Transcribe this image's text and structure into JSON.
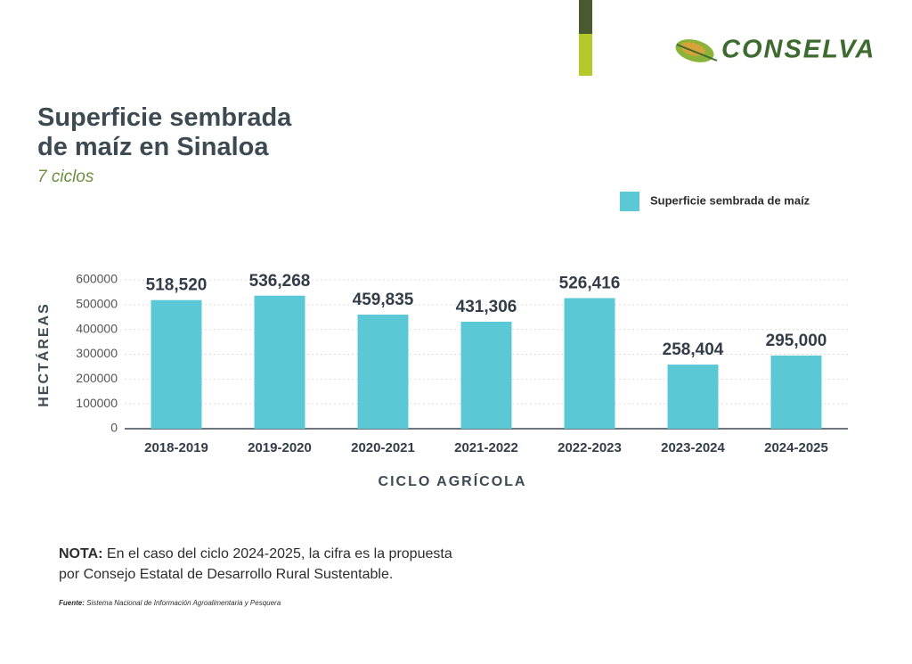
{
  "brand": "CONSELVA",
  "note": {
    "label": "NOTA:",
    "text": "En el caso del ciclo 2024-2025, la cifra es la propuesta por Consejo Estatal de Desarrollo Rural Sustentable."
  },
  "source": {
    "label": "Fuente:",
    "text": "Sistema Nacional de Información Agroalimentaria y Pesquera"
  },
  "chart_data": {
    "type": "bar",
    "title": "Superficie sembrada de maíz en Sinaloa",
    "subtitle": "7 ciclos",
    "x_label": "CICLO AGRÍCOLA",
    "y_label": "HECTÁREAS",
    "categories": [
      "2018-2019",
      "2019-2020",
      "2020-2021",
      "2021-2022",
      "2022-2023",
      "2023-2024",
      "2024-2025"
    ],
    "series": [
      {
        "name": "Superficie sembrada de maíz",
        "color": "#5bc8d6",
        "values": [
          518520,
          536268,
          459835,
          431306,
          526416,
          258404,
          295000
        ],
        "value_labels": [
          "518,520",
          "536,268",
          "459,835",
          "431,306",
          "526,416",
          "258,404",
          "295,000"
        ]
      }
    ],
    "ylim": [
      0,
      600000
    ],
    "yticks": [
      0,
      100000,
      200000,
      300000,
      400000,
      500000,
      600000
    ],
    "grid": true,
    "legend": "top-right"
  }
}
